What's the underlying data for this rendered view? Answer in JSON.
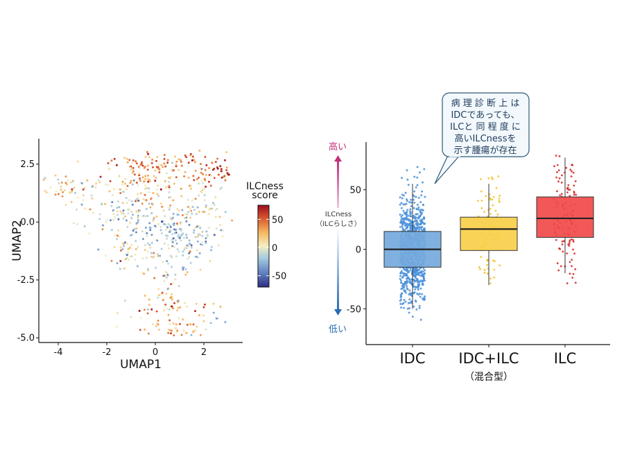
{
  "chart_data": [
    {
      "type": "scatter",
      "xlabel": "UMAP1",
      "ylabel": "UMAP2",
      "xlim": [
        -4.8,
        3.6
      ],
      "ylim": [
        -5.2,
        3.6
      ],
      "xticks": [
        "-4",
        "-2",
        "0",
        "2"
      ],
      "yticks": [
        "2.5",
        "0.0",
        "-2.5",
        "-5.0"
      ],
      "colorbar": {
        "title_lines": [
          "ILCness",
          "score"
        ],
        "ticks": [
          "50",
          "0",
          "-50"
        ],
        "range": [
          -70,
          75
        ],
        "colors": [
          "#2c2d83",
          "#5f7fbe",
          "#a3c9e1",
          "#f4efbf",
          "#f6b660",
          "#d9582e",
          "#9e0d1e"
        ],
        "placement": "right"
      }
    },
    {
      "type": "box",
      "categories": [
        "IDC",
        "IDC+ILC",
        "ILC"
      ],
      "category_sublabels": [
        "",
        "（混合型）",
        ""
      ],
      "colors": [
        "#74a9dd",
        "#f8cf4a",
        "#f14a4a"
      ],
      "point_colors": [
        "#4a90d9",
        "#f0c020",
        "#d42020"
      ],
      "ylim": [
        -80,
        90
      ],
      "yticks": [
        "50",
        "0",
        "-50"
      ],
      "boxes": [
        {
          "whisker_low": -50,
          "q1": -15,
          "median": 0,
          "q3": 15,
          "whisker_high": 55,
          "min": -75,
          "max": 83
        },
        {
          "whisker_low": -30,
          "q1": -1,
          "median": 17,
          "q3": 27,
          "whisker_high": 55,
          "min": -50,
          "max": 75
        },
        {
          "whisker_low": -20,
          "q1": 10,
          "median": 26,
          "q3": 44,
          "whisker_high": 77,
          "min": -40,
          "max": 82
        }
      ],
      "side_axis": {
        "high_label": "高い",
        "low_label": "低い",
        "title_line1": "ILCness",
        "title_line2": "（ILCらしさ）",
        "high_color": "#c2307a",
        "low_color": "#2a6bb3"
      },
      "annotation": {
        "lines": [
          "病 理 診 断 上 は",
          "IDCであっても、",
          "ILCと 同 程 度 に",
          "高いILCnessを",
          "示す腫瘍が存在"
        ],
        "points_to": "IDC"
      }
    }
  ]
}
